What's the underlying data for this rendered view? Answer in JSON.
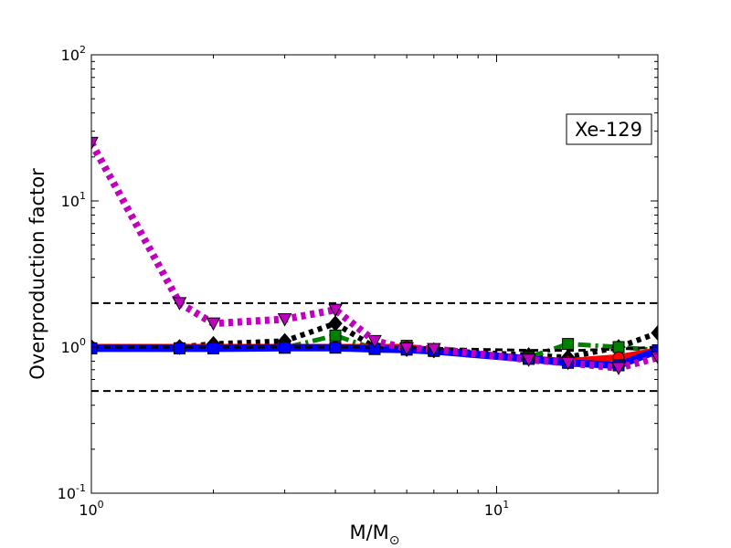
{
  "chart_data": {
    "type": "line",
    "title": "",
    "xlabel": "M/M",
    "xlabel_sub": "⊙",
    "ylabel": "Overproduction factor",
    "x_scale": "log",
    "y_scale": "log",
    "xlim": [
      1,
      25
    ],
    "ylim": [
      0.1,
      100
    ],
    "x_ticks": [
      {
        "value": 1,
        "base": "10",
        "exp": "0"
      },
      {
        "value": 10,
        "base": "10",
        "exp": "1"
      }
    ],
    "y_ticks": [
      {
        "value": 0.1,
        "base": "10",
        "exp": "-1"
      },
      {
        "value": 1,
        "base": "10",
        "exp": "0"
      },
      {
        "value": 10,
        "base": "10",
        "exp": "1"
      },
      {
        "value": 100,
        "base": "10",
        "exp": "2"
      }
    ],
    "annotation": "Xe-129",
    "reference_lines": [
      2.0,
      0.5
    ],
    "legend": "none",
    "grid": false,
    "series": [
      {
        "color": "#ff0000",
        "dash": "solid",
        "marker": "circle",
        "x": [
          1,
          1.65,
          2,
          3,
          4,
          5,
          6,
          7,
          12,
          15,
          20,
          25
        ],
        "y": [
          1.0,
          1.0,
          1.0,
          1.0,
          1.0,
          1.0,
          1.0,
          0.95,
          0.83,
          0.8,
          0.85,
          0.95
        ]
      },
      {
        "color": "#0000ff",
        "dash": "solid",
        "marker": "square",
        "x": [
          1,
          1.65,
          2,
          3,
          4,
          5,
          6,
          7,
          12,
          15,
          20,
          25
        ],
        "y": [
          0.98,
          0.98,
          0.98,
          0.99,
          0.99,
          0.97,
          0.96,
          0.94,
          0.83,
          0.78,
          0.75,
          0.95
        ]
      },
      {
        "color": "#008000",
        "dash": "dashdot",
        "marker": "square",
        "x": [
          1,
          1.65,
          2,
          3,
          4,
          5,
          6,
          7,
          12,
          15,
          20,
          25
        ],
        "y": [
          0.98,
          0.98,
          0.98,
          0.99,
          1.2,
          0.97,
          1.02,
          0.95,
          0.85,
          1.05,
          1.0,
          0.95
        ]
      },
      {
        "color": "#000000",
        "dash": "dotted",
        "marker": "diamond",
        "x": [
          1,
          1.65,
          2,
          3,
          4,
          5,
          6,
          7,
          12,
          15,
          20,
          25
        ],
        "y": [
          1.0,
          1.0,
          1.05,
          1.1,
          1.45,
          1.0,
          0.97,
          0.95,
          0.88,
          0.85,
          1.0,
          1.25
        ]
      },
      {
        "color": "#000000",
        "dash": "dashed",
        "marker": "none",
        "x": [
          1,
          2,
          4,
          6,
          8,
          12,
          16,
          20,
          25
        ],
        "y": [
          1.0,
          1.0,
          1.0,
          1.0,
          0.97,
          0.95,
          0.95,
          0.97,
          1.0
        ]
      },
      {
        "color": "#bf00bf",
        "dash": "dotted",
        "marker": "triangle-down",
        "x": [
          1,
          1.65,
          2,
          3,
          4,
          5,
          6,
          7,
          12,
          15,
          20,
          25
        ],
        "y": [
          25,
          2.0,
          1.45,
          1.55,
          1.8,
          1.1,
          0.98,
          0.97,
          0.82,
          0.78,
          0.72,
          0.85
        ]
      }
    ]
  }
}
